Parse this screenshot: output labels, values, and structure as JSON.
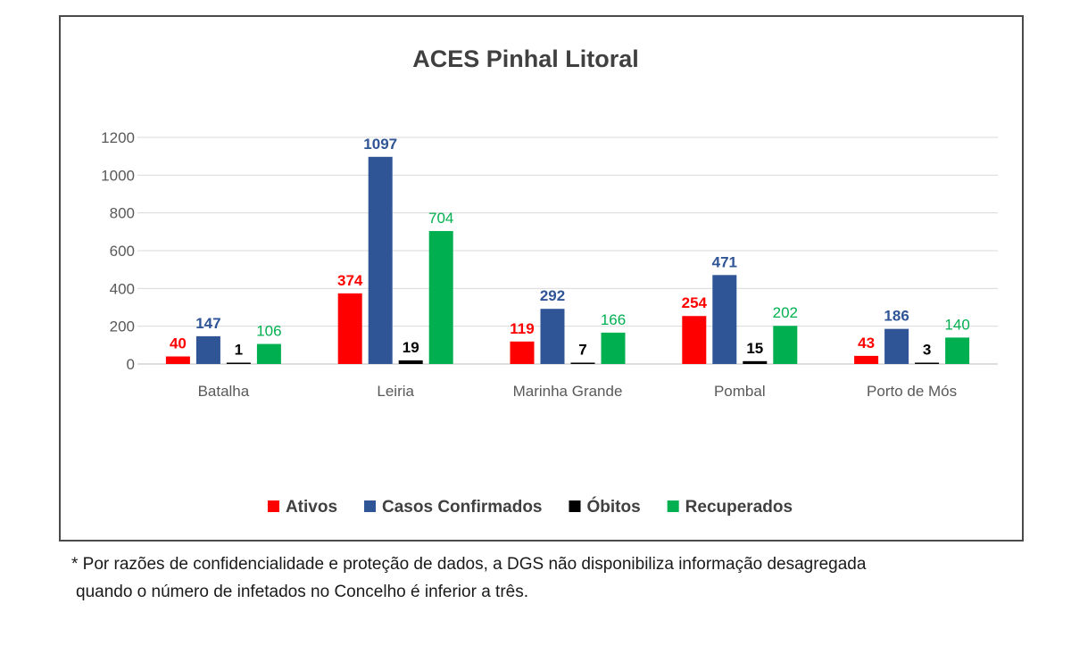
{
  "chart_data": {
    "type": "bar",
    "title": "ACES Pinhal Litoral",
    "categories": [
      "Batalha",
      "Leiria",
      "Marinha Grande",
      "Pombal",
      "Porto de Mós"
    ],
    "series": [
      {
        "name": "Ativos",
        "color": "#ff0000",
        "label_color": "#ff0000",
        "values": [
          40,
          374,
          119,
          254,
          43
        ]
      },
      {
        "name": "Casos Confirmados",
        "color": "#2f5597",
        "label_color": "#2f5597",
        "values": [
          147,
          1097,
          292,
          471,
          186
        ]
      },
      {
        "name": "Óbitos",
        "color": "#000000",
        "label_color": "#000000",
        "values": [
          1,
          19,
          7,
          15,
          3
        ]
      },
      {
        "name": "Recuperados",
        "color": "#00b050",
        "label_color": "#00b050",
        "values": [
          106,
          704,
          166,
          202,
          140
        ]
      }
    ],
    "yticks": [
      "0",
      "200",
      "400",
      "600",
      "800",
      "1000",
      "1200"
    ],
    "ylim": [
      0,
      1200
    ],
    "xlabel": "",
    "ylabel": "",
    "grid": true,
    "legend_position": "bottom"
  },
  "footnote": {
    "line1": "* Por razões de confidencialidade e proteção de dados, a DGS não disponibiliza informação desagregada",
    "line2": "quando o número de infetados no Concelho é inferior a três."
  }
}
